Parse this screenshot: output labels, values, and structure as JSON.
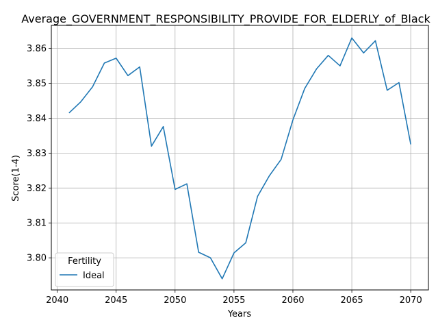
{
  "chart_data": {
    "type": "line",
    "title": "Average_GOVERNMENT_RESPONSIBILITY_PROVIDE_FOR_ELDERLY_of_Black",
    "xlabel": "Years",
    "ylabel": "Score(1-4)",
    "xlim": [
      2039.5,
      2071.5
    ],
    "ylim": [
      3.7908,
      3.8666
    ],
    "x_ticks": [
      2040,
      2045,
      2050,
      2055,
      2060,
      2065,
      2070
    ],
    "y_ticks": [
      3.8,
      3.81,
      3.82,
      3.83,
      3.84,
      3.85,
      3.86
    ],
    "y_tick_labels": [
      "3.80",
      "3.81",
      "3.82",
      "3.83",
      "3.84",
      "3.85",
      "3.86"
    ],
    "grid": true,
    "legend": {
      "title": "Fertility",
      "placement": "lower-left"
    },
    "colors": {
      "series": "#1f77b4",
      "grid": "#b0b0b0"
    },
    "x": [
      2041,
      2042,
      2043,
      2044,
      2045,
      2046,
      2047,
      2048,
      2049,
      2050,
      2051,
      2052,
      2053,
      2054,
      2055,
      2056,
      2057,
      2058,
      2059,
      2060,
      2061,
      2062,
      2063,
      2064,
      2065,
      2066,
      2067,
      2068,
      2069,
      2070
    ],
    "series": [
      {
        "name": "Ideal",
        "values": [
          3.8415,
          3.8447,
          3.849,
          3.8558,
          3.8572,
          3.8522,
          3.8547,
          3.832,
          3.8376,
          3.8196,
          3.8212,
          3.8016,
          3.8,
          3.794,
          3.8014,
          3.8043,
          3.8176,
          3.8235,
          3.8282,
          3.8395,
          3.8485,
          3.8541,
          3.858,
          3.855,
          3.863,
          3.8587,
          3.8622,
          3.848,
          3.8502,
          3.8325
        ]
      }
    ]
  }
}
